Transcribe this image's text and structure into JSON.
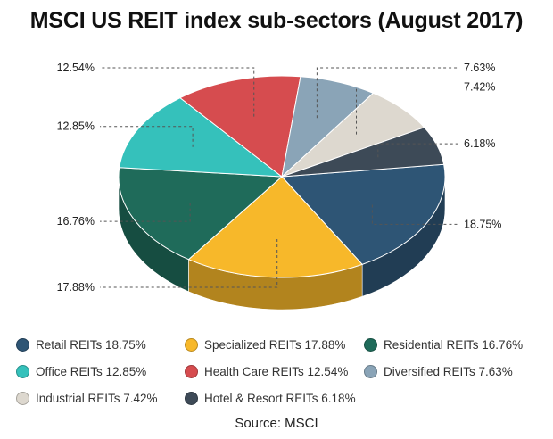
{
  "chart_data": {
    "type": "pie",
    "title": "MSCI US REIT index sub-sectors (August 2017)",
    "source": "Source: MSCI",
    "slices": [
      {
        "name": "Retail REITs",
        "value": 18.75,
        "value_label": "18.75%",
        "legend_label": "Retail REITs 18.75%",
        "color": "#2e5575"
      },
      {
        "name": "Specialized REITs",
        "value": 17.88,
        "value_label": "17.88%",
        "legend_label": "Specialized REITs 17.88%",
        "color": "#f7b82a"
      },
      {
        "name": "Residential REITs",
        "value": 16.76,
        "value_label": "16.76%",
        "legend_label": "Residential REITs 16.76%",
        "color": "#1f6b5a"
      },
      {
        "name": "Office REITs",
        "value": 12.85,
        "value_label": "12.85%",
        "legend_label": "Office REITs 12.85%",
        "color": "#35c1bb"
      },
      {
        "name": "Health Care REITs",
        "value": 12.54,
        "value_label": "12.54%",
        "legend_label": "Health Care REITs 12.54%",
        "color": "#d64c4f"
      },
      {
        "name": "Diversified REITs",
        "value": 7.63,
        "value_label": "7.63%",
        "legend_label": "Diversified REITs 7.63%",
        "color": "#8aa4b7"
      },
      {
        "name": "Industrial REITs",
        "value": 7.42,
        "value_label": "7.42%",
        "legend_label": "Industrial REITs 7.42%",
        "color": "#ddd8cf"
      },
      {
        "name": "Hotel & Resort REITs",
        "value": 6.18,
        "value_label": "6.18%",
        "legend_label": "Hotel & Resort REITs 6.18%",
        "color": "#3d4a57"
      }
    ]
  }
}
